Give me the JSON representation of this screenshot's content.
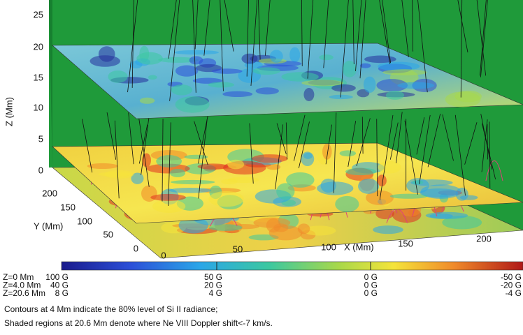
{
  "figure": {
    "z_axis": {
      "label": "Z (Mm)",
      "ticks": [
        0,
        5,
        10,
        15,
        20,
        25
      ]
    },
    "y_axis": {
      "label": "Y (Mm)",
      "ticks": [
        0,
        50,
        100,
        150,
        200
      ]
    },
    "x_axis": {
      "label": "X (Mm)",
      "ticks": [
        0,
        50,
        100,
        150,
        200
      ]
    },
    "colorbar": {
      "rows": [
        {
          "level": "Z=0 Mm",
          "labels": [
            "100 G",
            "50 G",
            "0 G",
            "-50 G"
          ]
        },
        {
          "level": "Z=4.0 Mm",
          "labels": [
            "40 G",
            "20 G",
            "0 G",
            "-20 G"
          ]
        },
        {
          "level": "Z=20.6 Mm",
          "labels": [
            "8 G",
            "4 G",
            "0 G",
            "-4 G"
          ]
        }
      ]
    },
    "caption": [
      "Contours at 4 Mm indicate the 80% level of Si II radiance;",
      "Shaded regions at 20.6 Mm denote where Ne VIII Doppler shift<-7 km/s."
    ]
  }
}
